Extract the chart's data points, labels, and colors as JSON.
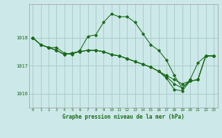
{
  "xlabel": "Graphe pression niveau de la mer (hPa)",
  "background_color": "#cce8e8",
  "grid_color": "#aacccc",
  "line_color": "#1a6b1a",
  "ylim": [
    1015.5,
    1019.2
  ],
  "yticks": [
    1016,
    1017,
    1018
  ],
  "xlim": [
    -0.5,
    23.5
  ],
  "xticks": [
    0,
    1,
    2,
    3,
    4,
    5,
    6,
    7,
    8,
    9,
    10,
    11,
    12,
    13,
    14,
    15,
    16,
    17,
    18,
    19,
    20,
    21,
    22,
    23
  ],
  "series": [
    [
      1018.0,
      1017.75,
      1017.65,
      1017.65,
      1017.45,
      1017.4,
      1017.55,
      1018.05,
      1018.1,
      1018.55,
      1018.85,
      1018.75,
      1018.75,
      1018.55,
      1018.15,
      1017.75,
      1017.55,
      1017.2,
      1016.65,
      1016.2,
      1016.5,
      1017.1,
      1017.35,
      1017.35
    ],
    [
      1018.0,
      1017.75,
      1017.65,
      1017.55,
      1017.4,
      1017.45,
      1017.5,
      1017.55,
      1017.55,
      1017.5,
      1017.4,
      1017.35,
      1017.25,
      1017.15,
      1017.05,
      1016.95,
      1016.8,
      1016.65,
      1016.5,
      1016.35,
      1016.45,
      1016.5,
      1017.35,
      1017.35
    ],
    [
      1018.0,
      1017.75,
      1017.65,
      1017.55,
      1017.4,
      1017.45,
      1017.5,
      1017.55,
      1017.55,
      1017.5,
      1017.4,
      1017.35,
      1017.25,
      1017.15,
      1017.05,
      1016.95,
      1016.8,
      1016.6,
      1016.35,
      1016.2,
      1016.45,
      1016.5,
      1017.35,
      1017.35
    ],
    [
      1018.0,
      1017.75,
      1017.65,
      1017.55,
      1017.4,
      1017.45,
      1017.5,
      1017.55,
      1017.55,
      1017.5,
      1017.4,
      1017.35,
      1017.25,
      1017.15,
      1017.05,
      1016.95,
      1016.8,
      1016.55,
      1016.15,
      1016.1,
      1016.45,
      1016.5,
      1017.35,
      1017.35
    ]
  ]
}
